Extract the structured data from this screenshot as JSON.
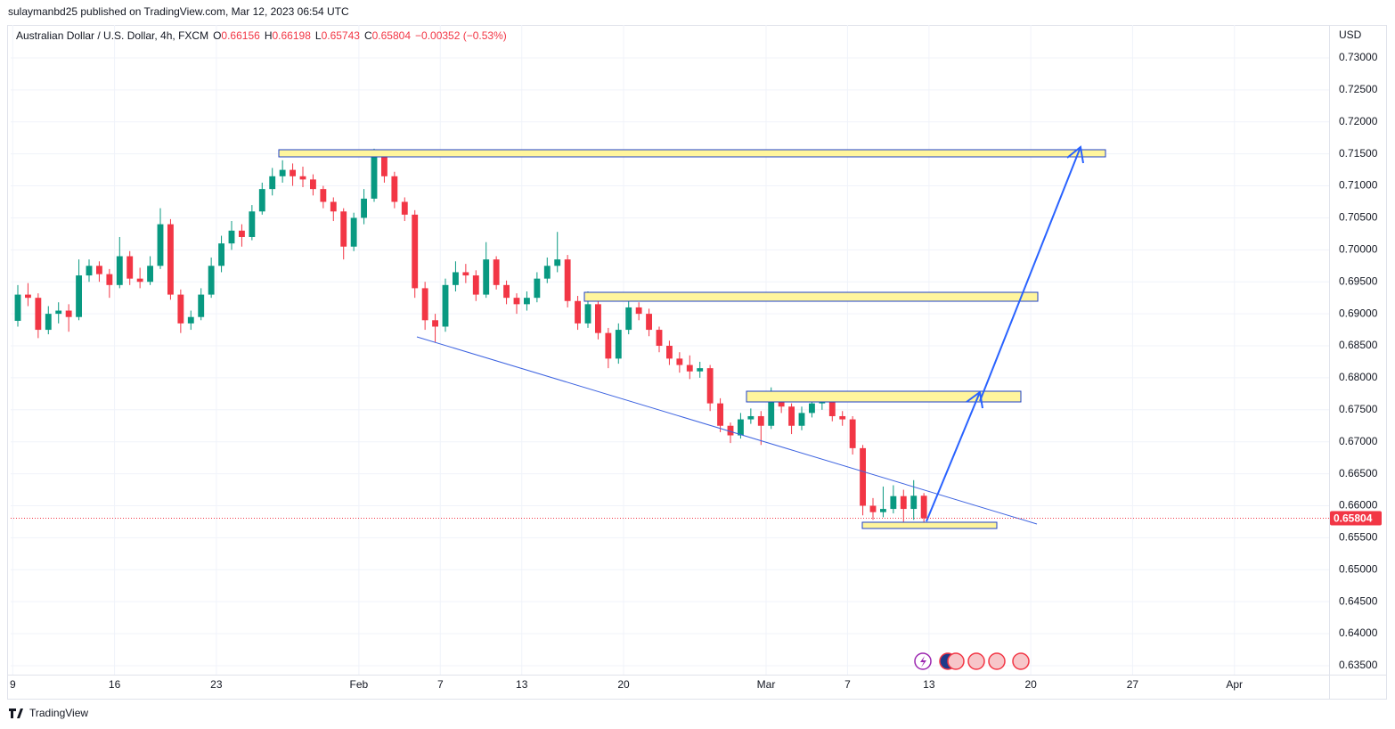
{
  "header": {
    "byline": "sulaymanbd25 published on TradingView.com, Mar 12, 2023 06:54 UTC"
  },
  "chart_data": {
    "type": "candlestick",
    "title": "Australian Dollar / U.S. Dollar, 4h, FXCM",
    "legend_ohlc": [
      {
        "label": "O",
        "value": 0.66156
      },
      {
        "label": "H",
        "value": 0.66198
      },
      {
        "label": "L",
        "value": 0.65743
      },
      {
        "label": "C",
        "value": 0.65804
      }
    ],
    "change": "−0.00352 (−0.53%)",
    "currency": "USD",
    "up_color": "#089981",
    "down_color": "#f23645",
    "grid": true,
    "last_price": {
      "value": 0.65804,
      "label": "0.65804"
    },
    "xlim": [
      -0.2,
      129.3
    ],
    "xticks": [
      {
        "value": 0,
        "label": "9"
      },
      {
        "value": 10,
        "label": "16"
      },
      {
        "value": 20,
        "label": "23"
      },
      {
        "value": 34,
        "label": "Feb"
      },
      {
        "value": 42,
        "label": "7"
      },
      {
        "value": 50,
        "label": "13"
      },
      {
        "value": 60,
        "label": "20"
      },
      {
        "value": 74,
        "label": "Mar"
      },
      {
        "value": 82,
        "label": "7"
      },
      {
        "value": 90,
        "label": "13"
      },
      {
        "value": 100,
        "label": "20"
      },
      {
        "value": 110,
        "label": "27"
      },
      {
        "value": 120,
        "label": "Apr"
      }
    ],
    "ylim": [
      0.6336,
      0.73515
    ],
    "yticks": [
      {
        "value": 0.635,
        "label": "0.63500"
      },
      {
        "value": 0.64,
        "label": "0.64000"
      },
      {
        "value": 0.645,
        "label": "0.64500"
      },
      {
        "value": 0.65,
        "label": "0.65000"
      },
      {
        "value": 0.655,
        "label": "0.65500"
      },
      {
        "value": 0.66,
        "label": "0.66000"
      },
      {
        "value": 0.665,
        "label": "0.66500"
      },
      {
        "value": 0.67,
        "label": "0.67000"
      },
      {
        "value": 0.675,
        "label": "0.67500"
      },
      {
        "value": 0.68,
        "label": "0.68000"
      },
      {
        "value": 0.685,
        "label": "0.68500"
      },
      {
        "value": 0.69,
        "label": "0.69000"
      },
      {
        "value": 0.695,
        "label": "0.69500"
      },
      {
        "value": 0.7,
        "label": "0.70000"
      },
      {
        "value": 0.705,
        "label": "0.70500"
      },
      {
        "value": 0.71,
        "label": "0.71000"
      },
      {
        "value": 0.715,
        "label": "0.71500"
      },
      {
        "value": 0.72,
        "label": "0.72000"
      },
      {
        "value": 0.725,
        "label": "0.72500"
      },
      {
        "value": 0.73,
        "label": "0.73000"
      }
    ],
    "ohlc": [
      [
        0.6889,
        0.6945,
        0.688,
        0.693
      ],
      [
        0.693,
        0.6948,
        0.6912,
        0.6925
      ],
      [
        0.6925,
        0.6932,
        0.6862,
        0.6875
      ],
      [
        0.6875,
        0.6912,
        0.6868,
        0.69
      ],
      [
        0.69,
        0.6918,
        0.6885,
        0.6905
      ],
      [
        0.6905,
        0.6915,
        0.6872,
        0.6895
      ],
      [
        0.6895,
        0.6985,
        0.689,
        0.696
      ],
      [
        0.696,
        0.6985,
        0.695,
        0.6975
      ],
      [
        0.6975,
        0.6982,
        0.695,
        0.6962
      ],
      [
        0.6962,
        0.697,
        0.6925,
        0.6945
      ],
      [
        0.6945,
        0.702,
        0.694,
        0.699
      ],
      [
        0.699,
        0.6998,
        0.6945,
        0.6955
      ],
      [
        0.6955,
        0.6972,
        0.694,
        0.695
      ],
      [
        0.695,
        0.699,
        0.6945,
        0.6975
      ],
      [
        0.6975,
        0.7065,
        0.697,
        0.704
      ],
      [
        0.704,
        0.7048,
        0.6922,
        0.693
      ],
      [
        0.693,
        0.6938,
        0.687,
        0.6885
      ],
      [
        0.6885,
        0.6905,
        0.6875,
        0.6895
      ],
      [
        0.6895,
        0.694,
        0.689,
        0.693
      ],
      [
        0.693,
        0.6988,
        0.6925,
        0.6975
      ],
      [
        0.6975,
        0.7022,
        0.6965,
        0.701
      ],
      [
        0.701,
        0.7045,
        0.7,
        0.703
      ],
      [
        0.703,
        0.704,
        0.7005,
        0.702
      ],
      [
        0.702,
        0.707,
        0.7015,
        0.706
      ],
      [
        0.706,
        0.7105,
        0.7055,
        0.7095
      ],
      [
        0.7095,
        0.7128,
        0.7085,
        0.7115
      ],
      [
        0.7115,
        0.714,
        0.7105,
        0.7125
      ],
      [
        0.7125,
        0.7135,
        0.71,
        0.7115
      ],
      [
        0.7115,
        0.713,
        0.7098,
        0.711
      ],
      [
        0.711,
        0.7118,
        0.7085,
        0.7095
      ],
      [
        0.7095,
        0.71,
        0.7065,
        0.7075
      ],
      [
        0.7075,
        0.7082,
        0.7045,
        0.706
      ],
      [
        0.706,
        0.7065,
        0.6985,
        0.7005
      ],
      [
        0.7005,
        0.7058,
        0.6998,
        0.705
      ],
      [
        0.705,
        0.7095,
        0.704,
        0.708
      ],
      [
        0.708,
        0.7158,
        0.7075,
        0.7145
      ],
      [
        0.7145,
        0.7155,
        0.7105,
        0.7115
      ],
      [
        0.7115,
        0.7122,
        0.7065,
        0.7075
      ],
      [
        0.7075,
        0.7082,
        0.7045,
        0.7055
      ],
      [
        0.7055,
        0.7062,
        0.6925,
        0.694
      ],
      [
        0.694,
        0.695,
        0.6875,
        0.689
      ],
      [
        0.689,
        0.69,
        0.6855,
        0.688
      ],
      [
        0.688,
        0.6955,
        0.6872,
        0.6945
      ],
      [
        0.6945,
        0.6982,
        0.6935,
        0.6965
      ],
      [
        0.6965,
        0.6978,
        0.6948,
        0.696
      ],
      [
        0.696,
        0.6968,
        0.692,
        0.693
      ],
      [
        0.693,
        0.7012,
        0.6925,
        0.6985
      ],
      [
        0.6985,
        0.699,
        0.6938,
        0.6945
      ],
      [
        0.6945,
        0.6952,
        0.6915,
        0.6925
      ],
      [
        0.6925,
        0.6932,
        0.69,
        0.6915
      ],
      [
        0.6915,
        0.6935,
        0.6905,
        0.6925
      ],
      [
        0.6925,
        0.6965,
        0.6918,
        0.6955
      ],
      [
        0.6955,
        0.6988,
        0.6948,
        0.6975
      ],
      [
        0.6975,
        0.7028,
        0.6965,
        0.6985
      ],
      [
        0.6985,
        0.6992,
        0.691,
        0.692
      ],
      [
        0.692,
        0.6928,
        0.6875,
        0.6885
      ],
      [
        0.6885,
        0.6935,
        0.6878,
        0.6915
      ],
      [
        0.6915,
        0.692,
        0.686,
        0.687
      ],
      [
        0.687,
        0.6878,
        0.6815,
        0.683
      ],
      [
        0.683,
        0.6885,
        0.6822,
        0.6875
      ],
      [
        0.6875,
        0.692,
        0.6868,
        0.691
      ],
      [
        0.691,
        0.6918,
        0.689,
        0.69
      ],
      [
        0.69,
        0.6908,
        0.6865,
        0.6875
      ],
      [
        0.6875,
        0.688,
        0.684,
        0.685
      ],
      [
        0.685,
        0.6858,
        0.682,
        0.683
      ],
      [
        0.683,
        0.684,
        0.6808,
        0.682
      ],
      [
        0.682,
        0.6835,
        0.6798,
        0.681
      ],
      [
        0.681,
        0.6825,
        0.68,
        0.6815
      ],
      [
        0.6815,
        0.682,
        0.6748,
        0.676
      ],
      [
        0.676,
        0.6768,
        0.6715,
        0.6725
      ],
      [
        0.6725,
        0.673,
        0.6698,
        0.671
      ],
      [
        0.671,
        0.6745,
        0.6705,
        0.6735
      ],
      [
        0.6735,
        0.6752,
        0.6728,
        0.674
      ],
      [
        0.674,
        0.6748,
        0.6695,
        0.6725
      ],
      [
        0.6725,
        0.6785,
        0.672,
        0.6765
      ],
      [
        0.6765,
        0.6775,
        0.6745,
        0.6755
      ],
      [
        0.6755,
        0.676,
        0.6712,
        0.6725
      ],
      [
        0.6725,
        0.6755,
        0.6718,
        0.6745
      ],
      [
        0.6745,
        0.6772,
        0.6738,
        0.676
      ],
      [
        0.676,
        0.6775,
        0.675,
        0.6765
      ],
      [
        0.6765,
        0.677,
        0.6732,
        0.674
      ],
      [
        0.674,
        0.6748,
        0.6725,
        0.6735
      ],
      [
        0.6735,
        0.674,
        0.668,
        0.669
      ],
      [
        0.669,
        0.6695,
        0.6585,
        0.66
      ],
      [
        0.66,
        0.6612,
        0.6578,
        0.659
      ],
      [
        0.659,
        0.663,
        0.6582,
        0.6595
      ],
      [
        0.6595,
        0.6632,
        0.6588,
        0.6615
      ],
      [
        0.6615,
        0.6625,
        0.6575,
        0.6595
      ],
      [
        0.6595,
        0.664,
        0.6578,
        0.66156
      ],
      [
        0.66156,
        0.66198,
        0.65743,
        0.65804
      ]
    ]
  },
  "footer": {
    "brand": "TradingView"
  }
}
